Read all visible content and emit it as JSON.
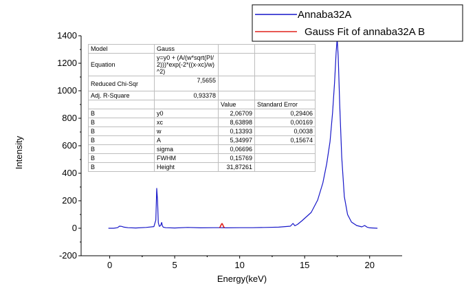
{
  "chart_data": {
    "type": "line",
    "xlabel": "Energy(keV)",
    "ylabel": "Intensity",
    "xlim": [
      -2.2,
      22.5
    ],
    "ylim": [
      -200,
      1400
    ],
    "xticks": [
      "0",
      "5",
      "10",
      "15",
      "20"
    ],
    "yticks": [
      "-200",
      "0",
      "200",
      "400",
      "600",
      "800",
      "1000",
      "1200",
      "1400"
    ],
    "legend_position": "top-right",
    "series": [
      {
        "name": "Annaba32A",
        "color": "#1515c8",
        "x": [
          -0.1,
          0.3,
          0.6,
          0.75,
          0.9,
          1.1,
          1.4,
          2.0,
          2.8,
          3.4,
          3.55,
          3.62,
          3.68,
          3.74,
          3.82,
          3.92,
          4.0,
          4.05,
          4.12,
          4.3,
          5.0,
          6.0,
          7.0,
          8.0,
          8.4,
          9.0,
          10.0,
          11.0,
          12.0,
          13.0,
          13.9,
          14.1,
          14.25,
          14.45,
          14.8,
          15.5,
          16.0,
          16.4,
          16.7,
          16.95,
          17.15,
          17.3,
          17.42,
          17.5,
          17.58,
          17.7,
          17.85,
          18.05,
          18.3,
          18.6,
          19.0,
          19.4,
          19.62,
          19.8,
          20.0,
          20.6
        ],
        "y": [
          0,
          0,
          4,
          15,
          14,
          8,
          4,
          2,
          6,
          12,
          60,
          290,
          200,
          40,
          14,
          20,
          42,
          18,
          8,
          4,
          2,
          6,
          3,
          4,
          4,
          3,
          4,
          4,
          6,
          8,
          15,
          35,
          18,
          28,
          55,
          115,
          205,
          330,
          470,
          630,
          840,
          1060,
          1280,
          1380,
          1250,
          900,
          520,
          230,
          100,
          45,
          20,
          10,
          20,
          8,
          3,
          0
        ]
      },
      {
        "name": "Gauss Fit of annaba32A B",
        "color": "#e0201a",
        "x": [
          8.45,
          8.5,
          8.55,
          8.6,
          8.64,
          8.68,
          8.72,
          8.77,
          8.82
        ],
        "y": [
          5,
          10,
          20,
          30,
          34,
          30,
          20,
          10,
          5
        ]
      }
    ]
  },
  "fit_table": {
    "rows": [
      [
        "Model",
        "Gauss",
        "",
        ""
      ],
      [
        "Equation",
        "y=y0 + (A/(w*sqrt(PI/2)))*exp(-2*((x-xc)/w)^2)",
        "",
        ""
      ],
      [
        "Reduced Chi-Sqr",
        "7,5655",
        "",
        ""
      ],
      [
        "Adj. R-Square",
        "0,93378",
        "",
        ""
      ],
      [
        "",
        "",
        "Value",
        "Standard Error"
      ],
      [
        "B",
        "y0",
        "2,06709",
        "0,29406"
      ],
      [
        "B",
        "xc",
        "8,63898",
        "0,00169"
      ],
      [
        "B",
        "w",
        "0,13393",
        "0,0038"
      ],
      [
        "B",
        "A",
        "5,34997",
        "0,15674"
      ],
      [
        "B",
        "sigma",
        "0,06696",
        ""
      ],
      [
        "B",
        "FWHM",
        "0,15769",
        ""
      ],
      [
        "B",
        "Height",
        "31,87261",
        ""
      ]
    ]
  }
}
